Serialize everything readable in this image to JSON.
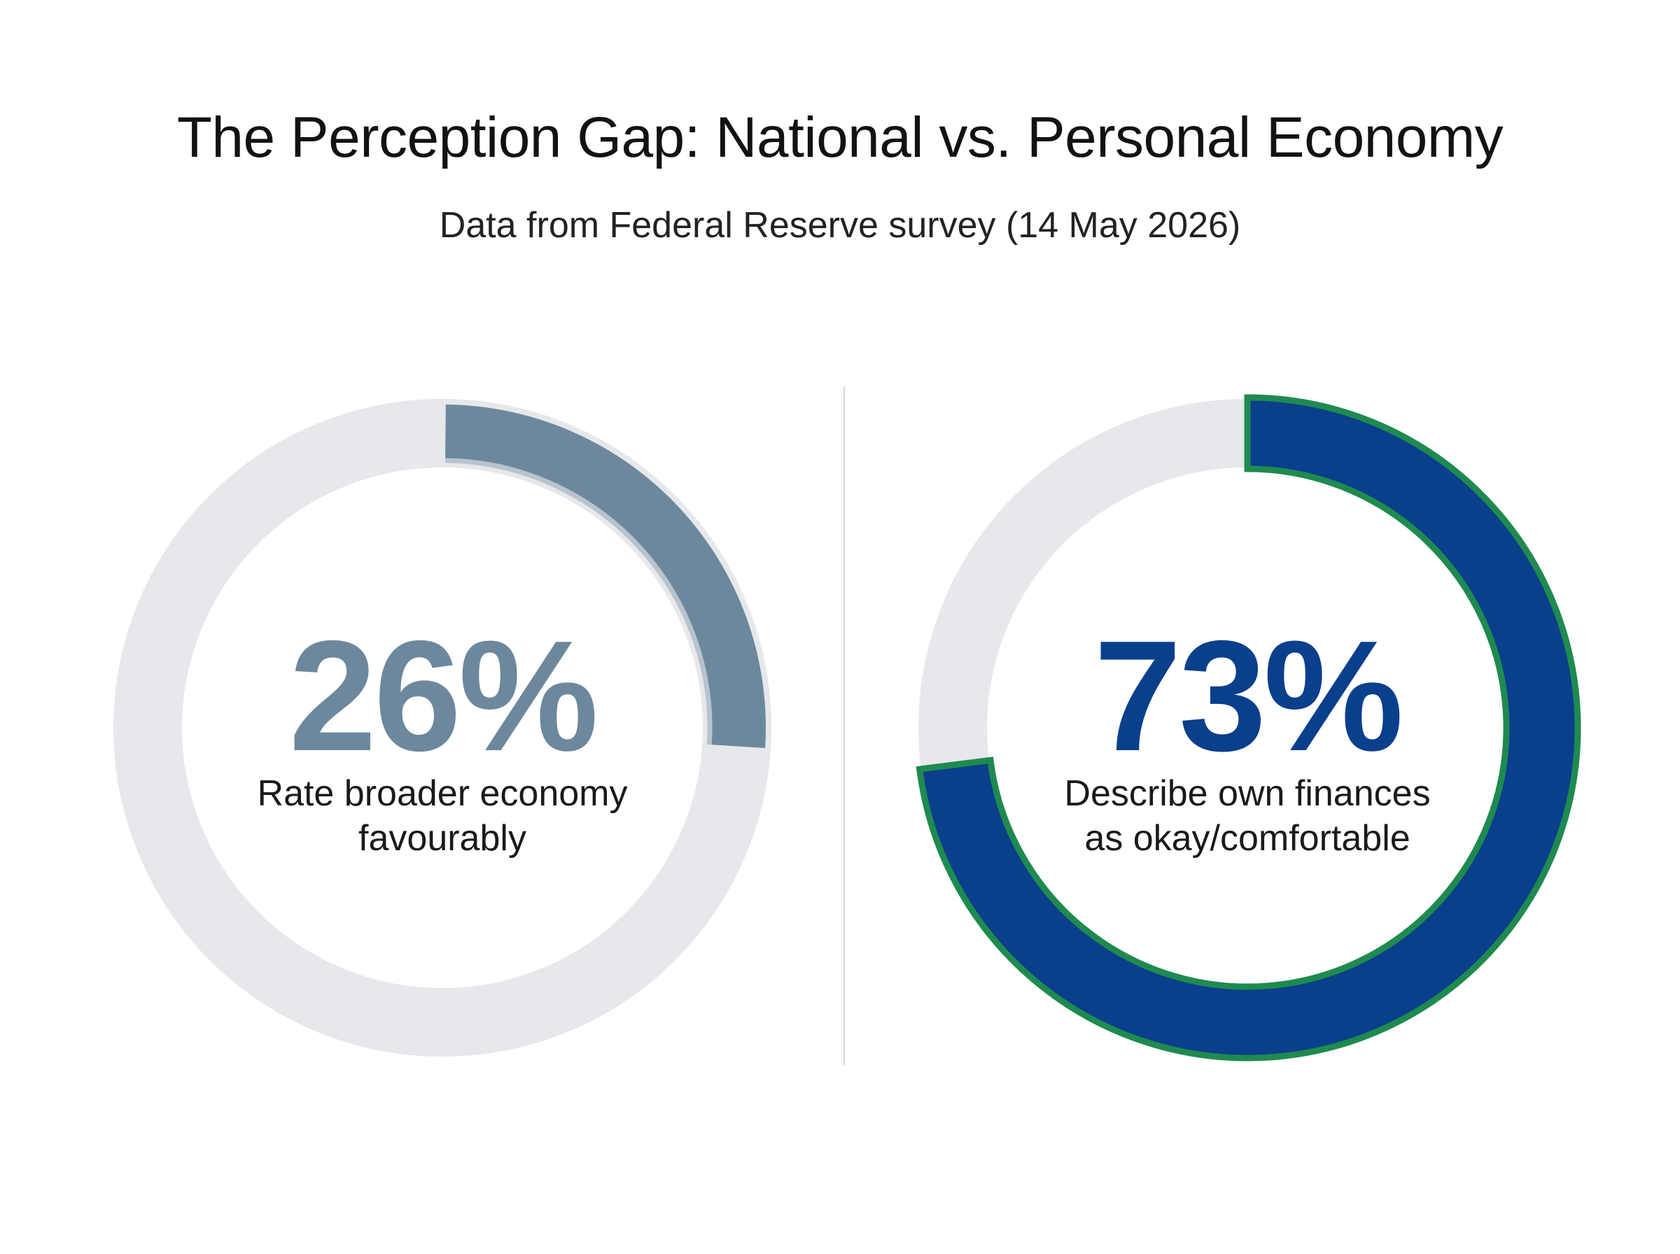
{
  "colors": {
    "track": "#e6e8eb",
    "national": "#6d889c",
    "national_inner_edge": "#b8c3cd",
    "personal": "#0a3f8c",
    "personal_outline": "#1f8a4f"
  },
  "chart_data": [
    {
      "type": "pie",
      "variant": "donut",
      "value": 26,
      "unit": "%",
      "display_value": "26%",
      "label_lines": [
        "Rate broader economy",
        "favourably"
      ]
    },
    {
      "type": "pie",
      "variant": "donut",
      "value": 73,
      "unit": "%",
      "display_value": "73%",
      "label_lines": [
        "Describe own finances",
        "as okay/comfortable"
      ]
    }
  ],
  "header": {
    "title": "The Perception Gap: National vs. Personal Economy",
    "subtitle": "Data from Federal Reserve survey (14 May 2026)"
  }
}
